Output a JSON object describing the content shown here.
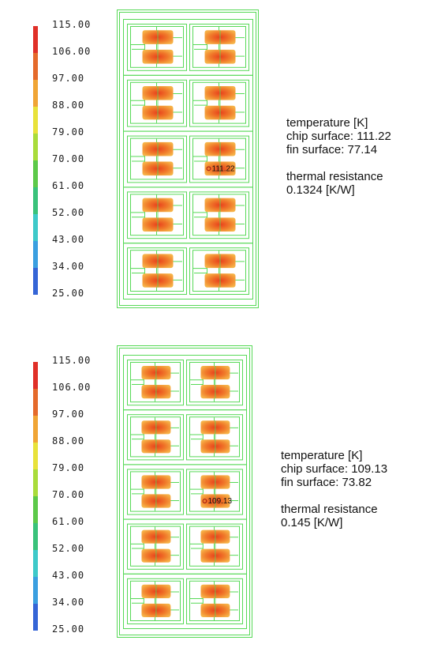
{
  "colors": {
    "outline": "#57d957",
    "hotspot_core": "#e8401c",
    "hotspot_mid": "#f07a2a",
    "hotspot_edge": "#f6b348",
    "probe": "#a01010"
  },
  "legend_colors": [
    "#e03028",
    "#e56a2b",
    "#f0a535",
    "#e8e23a",
    "#a9dc3b",
    "#5cc949",
    "#39c27a",
    "#3ec9c9",
    "#3a9fe0",
    "#3565d6"
  ],
  "panels": [
    {
      "legend": [
        "115.00",
        "106.00",
        "97.00",
        "88.00",
        "79.00",
        "70.00",
        "61.00",
        "52.00",
        "43.00",
        "34.00",
        "25.00"
      ],
      "probe_label": "111.22",
      "info": {
        "line1": "temperature [K]",
        "line2": "chip surface: 111.22",
        "line3": "fin surface: 77.14",
        "line4": "thermal resistance",
        "line5": "0.1324 [K/W]"
      }
    },
    {
      "legend": [
        "115.00",
        "106.00",
        "97.00",
        "88.00",
        "79.00",
        "70.00",
        "61.00",
        "52.00",
        "43.00",
        "34.00",
        "25.00"
      ],
      "probe_label": "109.13",
      "info": {
        "line1": "temperature [K]",
        "line2": "chip surface: 109.13",
        "line3": "fin surface: 73.82",
        "line4": "thermal resistance",
        "line5": "0.145 [K/W]"
      }
    }
  ]
}
